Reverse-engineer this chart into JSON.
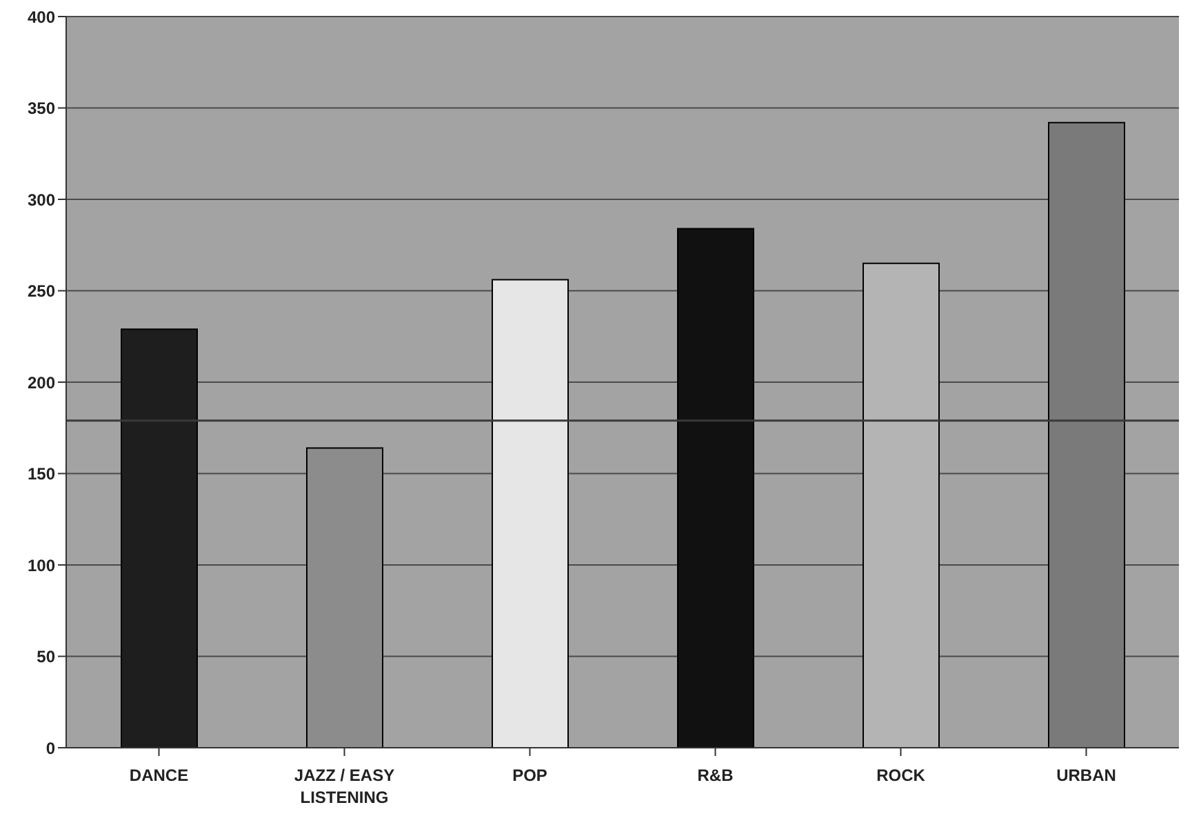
{
  "chart_data": {
    "type": "bar",
    "categories": [
      "DANCE",
      "JAZZ / EASY LISTENING",
      "POP",
      "R&B",
      "ROCK",
      "URBAN"
    ],
    "values": [
      229,
      164,
      256,
      284,
      265,
      342
    ],
    "colors": [
      "#1e1e1e",
      "#8c8c8c",
      "#e6e6e6",
      "#111111",
      "#b4b4b4",
      "#7a7a7a"
    ],
    "ylim": [
      0,
      400
    ],
    "yticks": [
      0,
      50,
      100,
      150,
      200,
      250,
      300,
      350,
      400
    ],
    "grid": "y",
    "ref_lines": [
      {
        "axis": "y",
        "value": 179,
        "color": "#3a3a3a"
      }
    ]
  }
}
